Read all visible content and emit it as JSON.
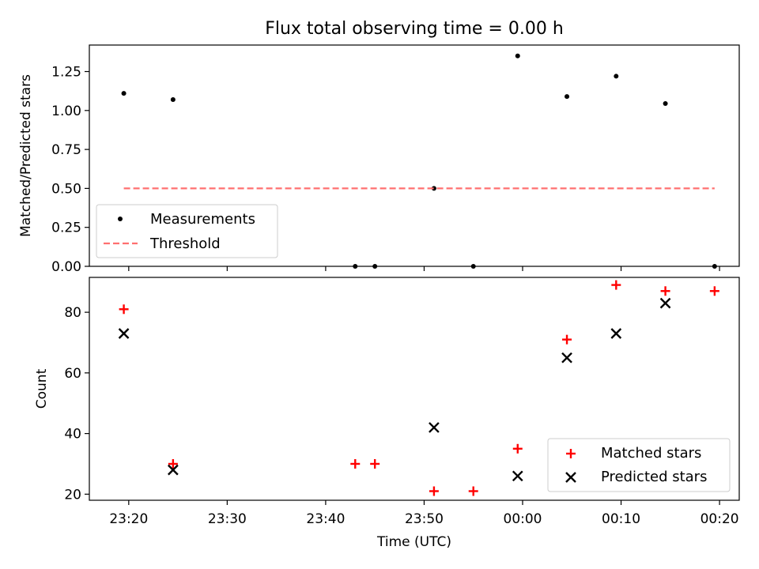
{
  "chart_data": [
    {
      "type": "scatter",
      "title": "Flux total observing time = 0.00 h",
      "xlabel": "",
      "ylabel": "Matched/Predicted stars",
      "ylim": [
        0,
        1.42
      ],
      "xlim_minutes": [
        -24.0,
        42.0
      ],
      "y_ticks": [
        {
          "value": 0.0,
          "label": "0.00"
        },
        {
          "value": 0.25,
          "label": "0.25"
        },
        {
          "value": 0.5,
          "label": "0.50"
        },
        {
          "value": 0.75,
          "label": "0.75"
        },
        {
          "value": 1.0,
          "label": "1.00"
        },
        {
          "value": 1.25,
          "label": "1.25"
        }
      ],
      "series": [
        {
          "name": "Measurements",
          "marker": "dot",
          "color": "#000000",
          "x_minutes": [
            -20.5,
            -15.5,
            3.0,
            5.0,
            11.0,
            15.0,
            19.5,
            24.5,
            29.5,
            34.5,
            39.5
          ],
          "y": [
            1.11,
            1.07,
            0.0,
            0.0,
            0.5,
            0.0,
            1.35,
            1.09,
            1.22,
            1.045,
            0.0
          ]
        },
        {
          "name": "Threshold",
          "style": "dashed-line",
          "color": "#ff7070",
          "x_minutes": [
            -20.5,
            39.5
          ],
          "y": [
            0.5,
            0.5
          ]
        }
      ],
      "legend": {
        "position": "lower-left",
        "entries": [
          "Measurements",
          "Threshold"
        ]
      }
    },
    {
      "type": "scatter",
      "title": "",
      "xlabel": "Time (UTC)",
      "ylabel": "Count",
      "ylim": [
        18,
        91.5
      ],
      "xlim_minutes": [
        -24.0,
        42.0
      ],
      "y_ticks": [
        {
          "value": 20,
          "label": "20"
        },
        {
          "value": 40,
          "label": "40"
        },
        {
          "value": 60,
          "label": "60"
        },
        {
          "value": 80,
          "label": "80"
        }
      ],
      "x_ticks": [
        {
          "minutes": -20,
          "label": "23:20"
        },
        {
          "minutes": -10,
          "label": "23:30"
        },
        {
          "minutes": 0,
          "label": "23:40"
        },
        {
          "minutes": 10,
          "label": "23:50"
        },
        {
          "minutes": 20,
          "label": "00:00"
        },
        {
          "minutes": 30,
          "label": "00:10"
        },
        {
          "minutes": 40,
          "label": "00:20"
        }
      ],
      "series": [
        {
          "name": "Matched stars",
          "marker": "plus",
          "color": "#ff0000",
          "x_minutes": [
            -20.5,
            -15.5,
            3.0,
            5.0,
            11.0,
            15.0,
            19.5,
            24.5,
            29.5,
            34.5,
            39.5
          ],
          "y": [
            81,
            30,
            30,
            30,
            21,
            21,
            35,
            71,
            89,
            87,
            87
          ]
        },
        {
          "name": "Predicted stars",
          "marker": "x",
          "color": "#000000",
          "x_minutes": [
            -20.5,
            -15.5,
            11.0,
            19.5,
            24.5,
            29.5,
            34.5
          ],
          "y": [
            73,
            28,
            42,
            26,
            65,
            73,
            83
          ]
        }
      ],
      "legend": {
        "position": "lower-right",
        "entries": [
          "Matched stars",
          "Predicted stars"
        ]
      }
    }
  ]
}
